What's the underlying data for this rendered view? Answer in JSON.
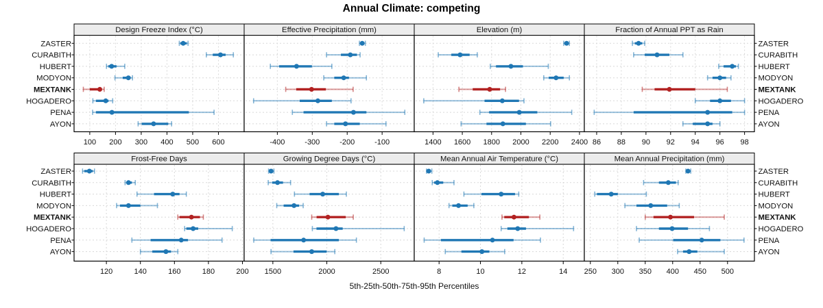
{
  "title": "Annual Climate: competing",
  "caption": "5th-25th-50th-75th-95th Percentiles",
  "sites": [
    "ZASTER",
    "CURABITH",
    "HUBERT",
    "MODYON",
    "MEXTANK",
    "HOGADERO",
    "PENA",
    "AYON"
  ],
  "highlight_site": "MEXTANK",
  "colors": {
    "series_default": "#1f77b4",
    "series_highlight": "#b22222",
    "strip_bg": "#ececec",
    "gridline": "#d8d8d8",
    "border": "#000000"
  },
  "chart_data": {
    "type": "dotplot-percentiles",
    "percentiles": [
      5,
      25,
      50,
      75,
      95
    ],
    "legend_note": "5th-25th-50th-75th-95th Percentiles",
    "grid": true,
    "panels": [
      {
        "row": 0,
        "col": 0,
        "title": "Design Freeze Index (°C)",
        "ticks": [
          100,
          200,
          300,
          400,
          500,
          600
        ],
        "domain": [
          39,
          700
        ],
        "values": {
          "ZASTER": [
            448,
            452,
            463,
            477,
            482
          ],
          "CURABITH": [
            553,
            578,
            608,
            628,
            658
          ],
          "HUBERT": [
            165,
            172,
            185,
            204,
            236
          ],
          "MODYON": [
            198,
            228,
            250,
            259,
            266
          ],
          "MEXTANK": [
            75,
            100,
            139,
            147,
            156
          ],
          "HOGADERO": [
            112,
            124,
            162,
            173,
            189
          ],
          "PENA": [
            111,
            124,
            186,
            485,
            583
          ],
          "AYON": [
            288,
            302,
            348,
            405,
            418
          ]
        }
      },
      {
        "row": 0,
        "col": 1,
        "title": "Effective Precipitation (mm)",
        "ticks": [
          -400,
          -300,
          -200,
          -100
        ],
        "domain": [
          -495,
          -8
        ],
        "values": {
          "ZASTER": [
            -165,
            -162,
            -157,
            -151,
            -148
          ],
          "CURABITH": [
            -259,
            -218,
            -191,
            -172,
            -163
          ],
          "HUBERT": [
            -420,
            -395,
            -345,
            -301,
            -244
          ],
          "MODYON": [
            -267,
            -237,
            -210,
            -195,
            -145
          ],
          "MEXTANK": [
            -376,
            -346,
            -302,
            -261,
            -183
          ],
          "HOGADERO": [
            -468,
            -336,
            -284,
            -244,
            -189
          ],
          "PENA": [
            -357,
            -325,
            -182,
            -145,
            -35
          ],
          "AYON": [
            -259,
            -237,
            -205,
            -164,
            -89
          ]
        }
      },
      {
        "row": 0,
        "col": 2,
        "title": "Elevation (m)",
        "ticks": [
          1400,
          1600,
          1800,
          2000,
          2200,
          2400
        ],
        "domain": [
          1272,
          2433
        ],
        "values": {
          "ZASTER": [
            2292,
            2298,
            2312,
            2322,
            2331
          ],
          "CURABITH": [
            1436,
            1525,
            1585,
            1650,
            1702
          ],
          "HUBERT": [
            1791,
            1830,
            1932,
            2014,
            2187
          ],
          "MODYON": [
            2156,
            2190,
            2240,
            2292,
            2331
          ],
          "MEXTANK": [
            1577,
            1671,
            1787,
            1858,
            1895
          ],
          "HOGADERO": [
            1337,
            1752,
            1873,
            1987,
            2021
          ],
          "PENA": [
            1720,
            1783,
            1989,
            2112,
            2347
          ],
          "AYON": [
            1592,
            1765,
            1877,
            2034,
            2203
          ]
        }
      },
      {
        "row": 0,
        "col": 3,
        "title": "Fraction of Annual PPT as Rain",
        "ticks": [
          86,
          88,
          90,
          92,
          94,
          96,
          98
        ],
        "domain": [
          85,
          98.8
        ],
        "values": {
          "ZASTER": [
            88.9,
            89.1,
            89.4,
            89.7,
            89.9
          ],
          "CURABITH": [
            89.0,
            89.9,
            90.9,
            91.9,
            93.0
          ],
          "HUBERT": [
            95.9,
            96.3,
            97.0,
            97.3,
            97.5
          ],
          "MODYON": [
            95.0,
            95.4,
            96.0,
            96.5,
            96.9
          ],
          "MEXTANK": [
            89.7,
            90.7,
            91.9,
            94.0,
            96.6
          ],
          "HOGADERO": [
            94.0,
            95.2,
            96.0,
            96.9,
            98.0
          ],
          "PENA": [
            85.8,
            89.0,
            95.0,
            97.0,
            98.0
          ],
          "AYON": [
            93.0,
            93.8,
            95.0,
            95.4,
            96.0
          ]
        }
      },
      {
        "row": 1,
        "col": 0,
        "title": "Frost-Free Days",
        "ticks": [
          120,
          140,
          160,
          180,
          200
        ],
        "domain": [
          101,
          201
        ],
        "values": {
          "ZASTER": [
            106,
            107,
            110,
            112,
            113
          ],
          "CURABITH": [
            131,
            132,
            133,
            135,
            137
          ],
          "HUBERT": [
            138,
            148,
            159,
            163,
            167
          ],
          "MODYON": [
            126,
            128,
            133,
            140,
            150
          ],
          "MEXTANK": [
            162,
            163,
            170,
            175,
            177
          ],
          "HOGADERO": [
            166,
            167,
            171,
            174,
            194
          ],
          "PENA": [
            135,
            146,
            164,
            168,
            188
          ],
          "AYON": [
            140,
            147,
            155,
            158,
            162
          ]
        }
      },
      {
        "row": 1,
        "col": 1,
        "title": "Growing Degree Days (°C)",
        "ticks": [
          1500,
          2000,
          2500
        ],
        "domain": [
          1234,
          2810
        ],
        "values": {
          "ZASTER": [
            1460,
            1470,
            1483,
            1495,
            1510
          ],
          "CURABITH": [
            1457,
            1494,
            1543,
            1594,
            1664
          ],
          "HUBERT": [
            1700,
            1840,
            1962,
            2111,
            2181
          ],
          "MODYON": [
            1536,
            1600,
            1696,
            1743,
            1781
          ],
          "MEXTANK": [
            1860,
            1905,
            2010,
            2175,
            2245
          ],
          "HOGADERO": [
            1866,
            1904,
            2085,
            2147,
            2717
          ],
          "PENA": [
            1323,
            1479,
            1785,
            2111,
            2274
          ],
          "AYON": [
            1483,
            1691,
            1860,
            1998,
            2074
          ]
        }
      },
      {
        "row": 1,
        "col": 2,
        "title": "Mean Annual Air Temperature (°C)",
        "ticks": [
          8,
          10,
          12,
          14
        ],
        "domain": [
          6.8,
          15.02
        ],
        "values": {
          "ZASTER": [
            7.39,
            7.43,
            7.5,
            7.58,
            7.65
          ],
          "CURABITH": [
            7.67,
            7.76,
            7.92,
            8.2,
            8.72
          ],
          "HUBERT": [
            9.2,
            10.05,
            11.0,
            11.67,
            11.85
          ],
          "MODYON": [
            8.48,
            8.64,
            8.94,
            9.38,
            9.68
          ],
          "MEXTANK": [
            11.04,
            11.15,
            11.62,
            12.34,
            12.87
          ],
          "HOGADERO": [
            11.0,
            11.3,
            11.8,
            12.2,
            14.5
          ],
          "PENA": [
            7.28,
            8.09,
            10.58,
            11.6,
            12.9
          ],
          "AYON": [
            8.3,
            9.08,
            10.07,
            10.43,
            11.17
          ]
        }
      },
      {
        "row": 1,
        "col": 3,
        "title": "Mean Annual Precipitation (mm)",
        "ticks": [
          250,
          300,
          350,
          400,
          450,
          500
        ],
        "domain": [
          239,
          549
        ],
        "values": {
          "ZASTER": [
            424,
            426,
            428,
            431,
            433
          ],
          "CURABITH": [
            347,
            375,
            392,
            406,
            410
          ],
          "HUBERT": [
            258,
            262,
            288,
            300,
            352
          ],
          "MODYON": [
            313,
            334,
            360,
            390,
            412
          ],
          "MEXTANK": [
            350,
            365,
            396,
            439,
            494
          ],
          "HOGADERO": [
            334,
            375,
            399,
            428,
            467
          ],
          "PENA": [
            339,
            401,
            453,
            487,
            530
          ],
          "AYON": [
            409,
            419,
            430,
            445,
            494
          ]
        }
      }
    ]
  }
}
